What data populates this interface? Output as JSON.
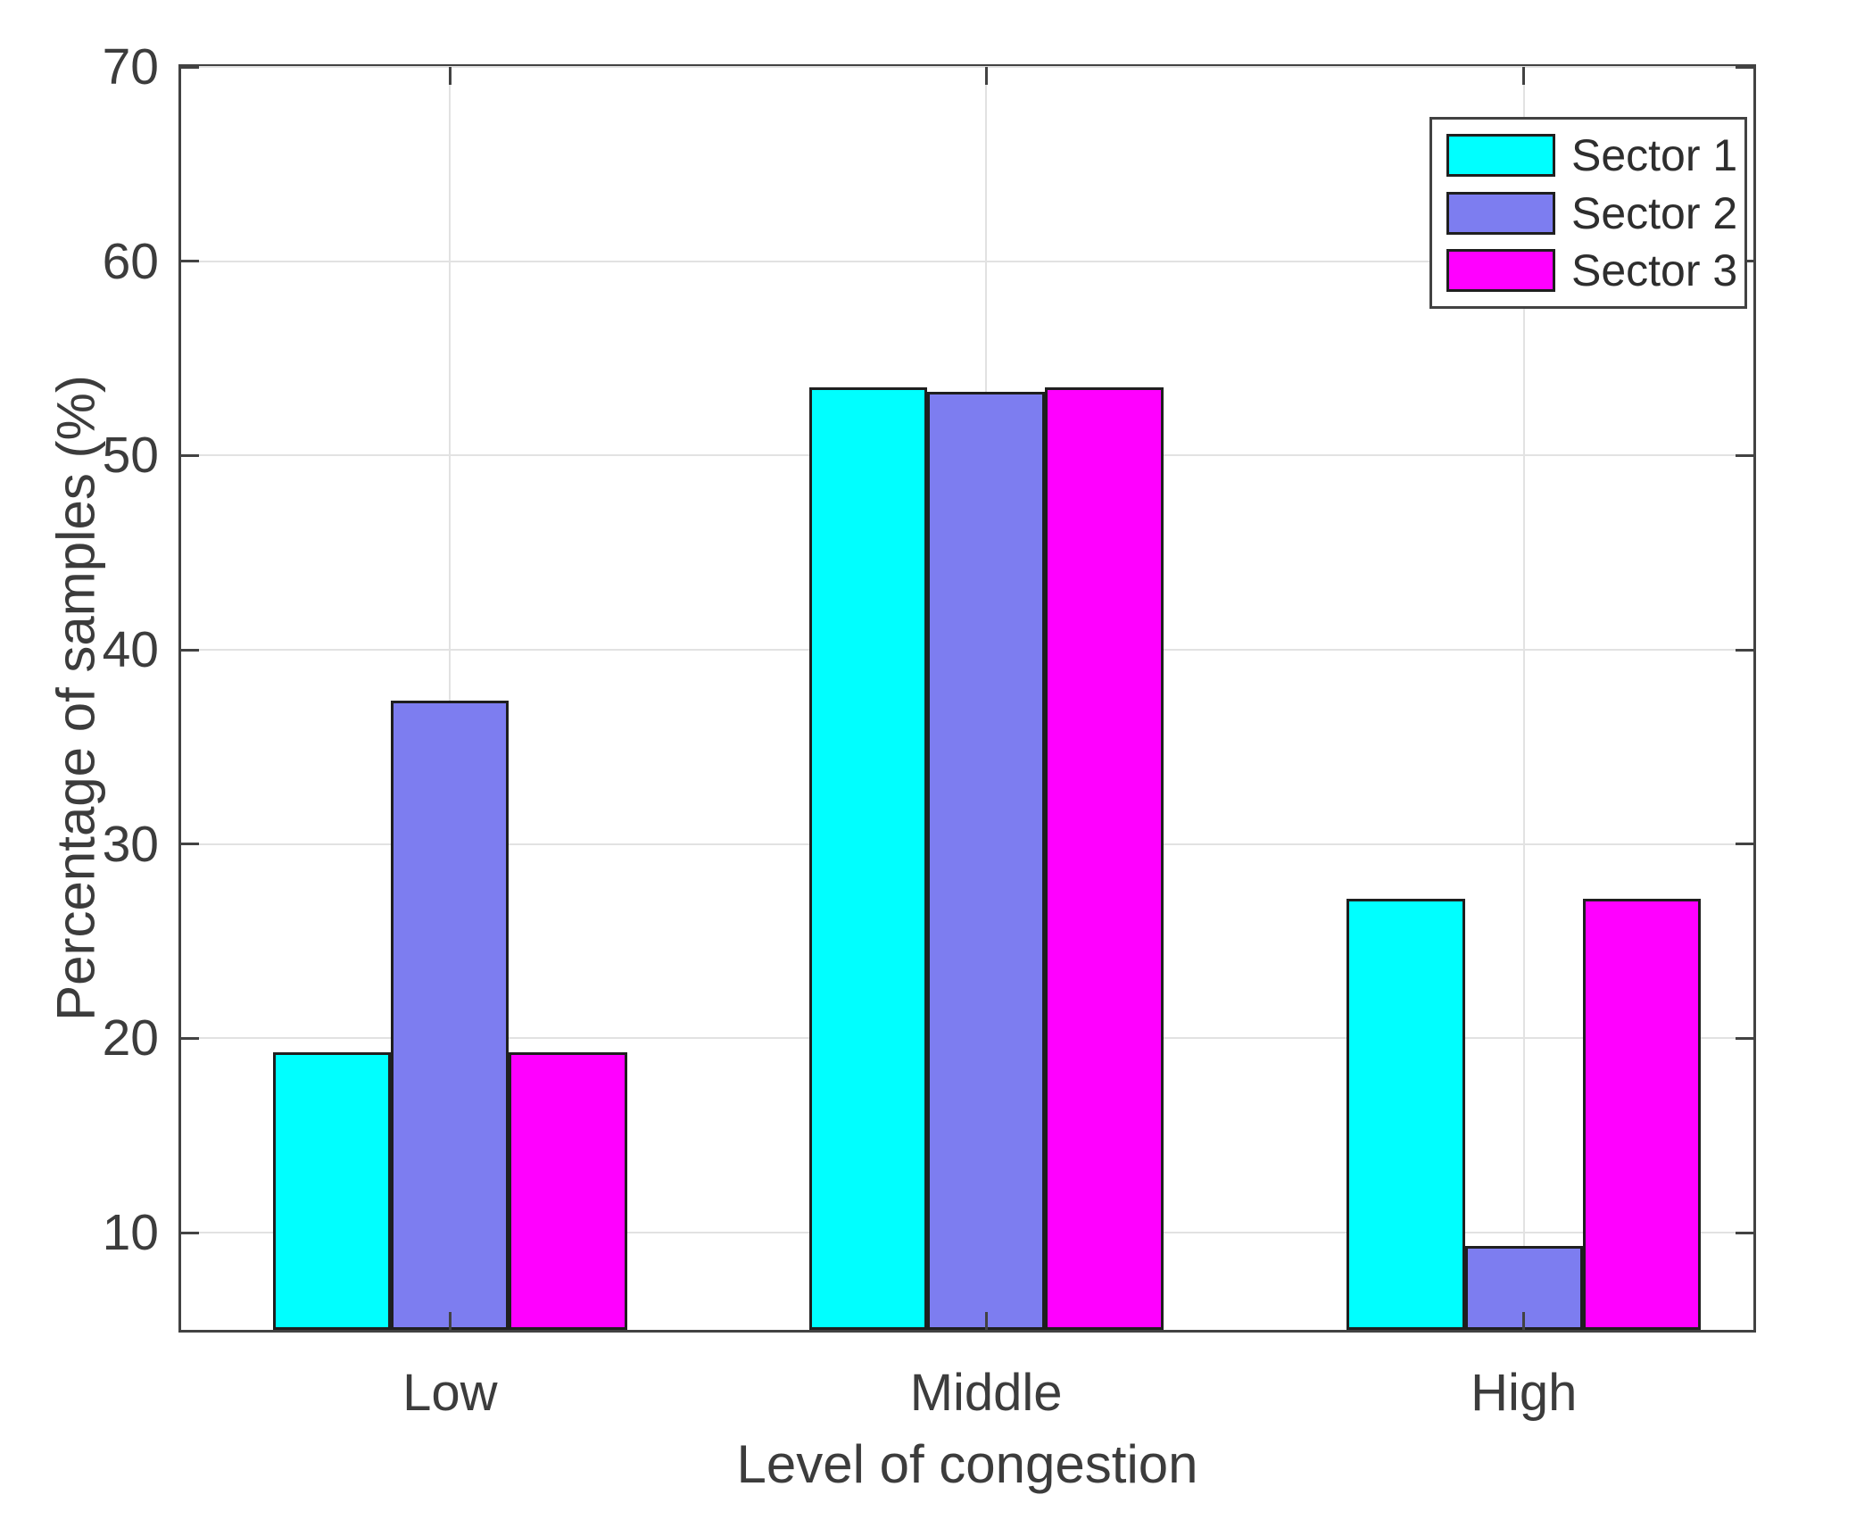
{
  "chart_data": {
    "type": "bar",
    "title": "",
    "xlabel": "Level of congestion",
    "ylabel": "Percentage of samples (%)",
    "categories": [
      "Low",
      "Middle",
      "High"
    ],
    "series": [
      {
        "name": "Sector 1",
        "color": "#00FFFF",
        "values": [
          19.3,
          53.5,
          27.2
        ]
      },
      {
        "name": "Sector 2",
        "color": "#7D7DF0",
        "values": [
          37.4,
          53.3,
          9.3
        ]
      },
      {
        "name": "Sector 3",
        "color": "#FF00FF",
        "values": [
          19.3,
          53.5,
          27.2
        ]
      }
    ],
    "ylim": [
      5,
      70
    ],
    "yticks": [
      10,
      20,
      30,
      40,
      50,
      60,
      70
    ],
    "grid": true,
    "grid_color": "#e2e2e2",
    "axis_color": "#424242",
    "text_color": "#3c3c3c",
    "legend_position": "top-right",
    "legend_entries": [
      "Sector 1",
      "Sector 2",
      "Sector 3"
    ]
  }
}
